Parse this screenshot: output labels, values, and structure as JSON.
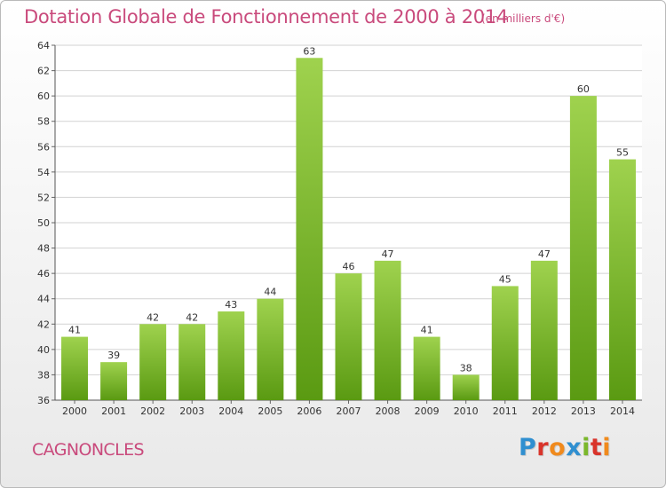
{
  "title": "Dotation Globale de Fonctionnement de 2000 à 2014",
  "unit": "(en milliers d'€)",
  "commune": "CAGNONCLES",
  "logo": "Proxiti",
  "colors": {
    "title": "#c94a7c",
    "bar_top": "#9fd24e",
    "bar_bottom": "#5a9a12",
    "grid": "#d2d2d2"
  },
  "chart_data": {
    "type": "bar",
    "categories": [
      "2000",
      "2001",
      "2002",
      "2003",
      "2004",
      "2005",
      "2006",
      "2007",
      "2008",
      "2009",
      "2010",
      "2011",
      "2012",
      "2013",
      "2014"
    ],
    "values": [
      41,
      39,
      42,
      42,
      43,
      44,
      63,
      46,
      47,
      41,
      38,
      45,
      47,
      60,
      55
    ],
    "ylim": [
      36,
      64
    ],
    "yticks": [
      36,
      38,
      40,
      42,
      44,
      46,
      48,
      50,
      52,
      54,
      56,
      58,
      60,
      62,
      64
    ],
    "title": "Dotation Globale de Fonctionnement de 2000 à 2014",
    "xlabel": "",
    "ylabel": "",
    "grid": true,
    "data_labels": true
  }
}
